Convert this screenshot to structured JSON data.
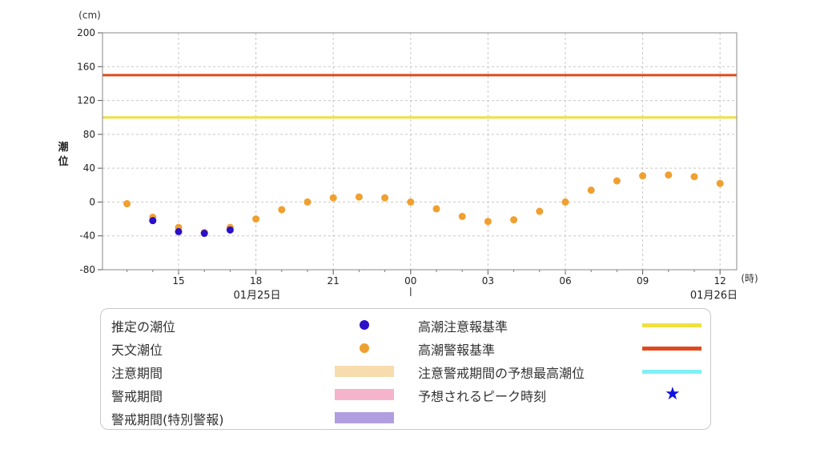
{
  "chart_data": {
    "type": "scatter",
    "y_unit": "(cm)",
    "x_unit": "(時)",
    "ylabel": "潮位",
    "ylim": [
      -80,
      200
    ],
    "yticks": [
      200,
      160,
      120,
      80,
      40,
      0,
      -40,
      -80
    ],
    "x_range_hours": [
      "01/25 12:00",
      "01/26 12:30"
    ],
    "x_ticks": [
      "15",
      "18",
      "21",
      "00",
      "03",
      "06",
      "09",
      "12"
    ],
    "date_labels": [
      "01月25日",
      "01月26日"
    ],
    "grid": true,
    "series": [
      {
        "name": "天文潮位",
        "color": "#f0a030",
        "x": [
          "01/25 13:00",
          "01/25 14:00",
          "01/25 15:00",
          "01/25 16:00",
          "01/25 17:00",
          "01/25 18:00",
          "01/25 19:00",
          "01/25 20:00",
          "01/25 21:00",
          "01/25 22:00",
          "01/25 23:00",
          "01/26 00:00",
          "01/26 01:00",
          "01/26 02:00",
          "01/26 03:00",
          "01/26 04:00",
          "01/26 05:00",
          "01/26 06:00",
          "01/26 07:00",
          "01/26 08:00",
          "01/26 09:00",
          "01/26 10:00",
          "01/26 11:00",
          "01/26 12:00"
        ],
        "values": [
          -2,
          -18,
          -30,
          -36,
          -30,
          -20,
          -9,
          0,
          5,
          6,
          5,
          0,
          -8,
          -17,
          -23,
          -21,
          -11,
          0,
          14,
          25,
          31,
          32,
          30,
          22
        ]
      },
      {
        "name": "推定の潮位",
        "color": "#2a10c8",
        "x": [
          "01/25 14:00",
          "01/25 15:00",
          "01/25 16:00",
          "01/25 17:00"
        ],
        "values": [
          -22,
          -35,
          -37,
          -33
        ]
      }
    ],
    "reference_lines": [
      {
        "name": "高潮注意報基準",
        "value": 100,
        "color": "#f0e040"
      },
      {
        "name": "高潮警報基準",
        "value": 150,
        "color": "#e04a1e"
      }
    ]
  },
  "legend": {
    "items": [
      {
        "label": "推定の潮位",
        "kind": "dot",
        "color": "#2a10c8"
      },
      {
        "label": "天文潮位",
        "kind": "dot",
        "color": "#f0a030"
      },
      {
        "label": "注意期間",
        "kind": "rect",
        "color": "#f7dcae"
      },
      {
        "label": "警戒期間",
        "kind": "rect",
        "color": "#f5b3cc"
      },
      {
        "label": "警戒期間(特別警報)",
        "kind": "rect",
        "color": "#b09ee0"
      },
      {
        "label": "高潮注意報基準",
        "kind": "line",
        "color": "#f0e040"
      },
      {
        "label": "高潮警報基準",
        "kind": "line",
        "color": "#e04a1e"
      },
      {
        "label": "注意警戒期間の予想最高潮位",
        "kind": "line",
        "color": "#7ff0f5"
      },
      {
        "label": "予想されるピーク時刻",
        "kind": "star",
        "color": "#1010e0",
        "symbol": "★"
      }
    ]
  }
}
